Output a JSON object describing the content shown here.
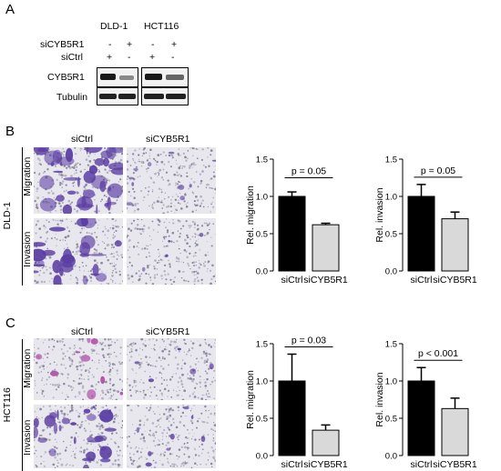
{
  "panel_a": {
    "letter": "A",
    "cell_lines": [
      "DLD-1",
      "HCT116"
    ],
    "row_labels": [
      "siCYB5R1",
      "siCtrl"
    ],
    "sicyb5r1_marks": [
      "-",
      "+",
      "-",
      "+"
    ],
    "sictrl_marks": [
      "+",
      "-",
      "+",
      "-"
    ],
    "blots": [
      "CYB5R1",
      "Tubulin"
    ]
  },
  "panel_b": {
    "letter": "B",
    "cell_line": "DLD-1",
    "col_labels": [
      "siCtrl",
      "siCYB5R1"
    ],
    "row_labels": [
      "Migration",
      "Invasion"
    ]
  },
  "panel_c": {
    "letter": "C",
    "cell_line": "HCT116",
    "col_labels": [
      "siCtrl",
      "siCYB5R1"
    ],
    "row_labels": [
      "Migration",
      "Invasion"
    ]
  },
  "colors": {
    "ctrl_bar": "#000000",
    "kd_bar": "#d9d9d9",
    "stain": "#5b3fa3",
    "stain_pink": "#b04aa8"
  },
  "chart_data": [
    {
      "type": "bar",
      "id": "dld1-migration",
      "categories": [
        "siCtrl",
        "siCYB5R1"
      ],
      "values": [
        1.0,
        0.62
      ],
      "errors": [
        0.06,
        0.02
      ],
      "ylabel": "Rel. migration",
      "ylim": [
        0,
        1.5
      ],
      "yticks": [
        "0.0",
        "0.5",
        "1.0",
        "1.5"
      ],
      "annotation": "p = 0.05"
    },
    {
      "type": "bar",
      "id": "dld1-invasion",
      "categories": [
        "siCtrl",
        "siCYB5R1"
      ],
      "values": [
        1.0,
        0.7
      ],
      "errors": [
        0.16,
        0.09
      ],
      "ylabel": "Rel. invasion",
      "ylim": [
        0,
        1.5
      ],
      "yticks": [
        "0.0",
        "0.5",
        "1.0",
        "1.5"
      ],
      "annotation": "p = 0.05"
    },
    {
      "type": "bar",
      "id": "hct116-migration",
      "categories": [
        "siCtrl",
        "siCYB5R1"
      ],
      "values": [
        1.0,
        0.34
      ],
      "errors": [
        0.36,
        0.07
      ],
      "ylabel": "Rel. migration",
      "ylim": [
        0,
        1.5
      ],
      "yticks": [
        "0.0",
        "0.5",
        "1.0",
        "1.5"
      ],
      "annotation": "p = 0.03"
    },
    {
      "type": "bar",
      "id": "hct116-invasion",
      "categories": [
        "siCtrl",
        "siCYB5R1"
      ],
      "values": [
        1.0,
        0.63
      ],
      "errors": [
        0.18,
        0.14
      ],
      "ylabel": "Rel. invasion",
      "ylim": [
        0,
        1.5
      ],
      "yticks": [
        "0.0",
        "0.5",
        "1.0",
        "1.5"
      ],
      "annotation": "p < 0.001"
    }
  ]
}
